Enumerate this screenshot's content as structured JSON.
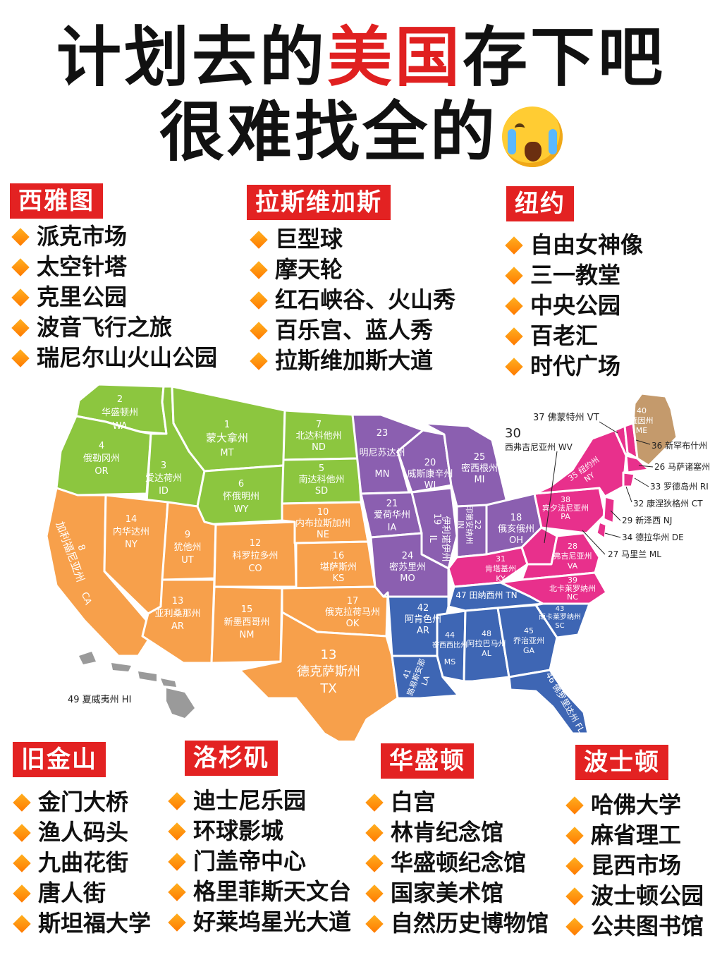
{
  "title": {
    "line1_a": "计划去的",
    "line1_b": "美国",
    "line1_c": "存下吧",
    "line2": "很难找全的"
  },
  "cities": {
    "seattle": {
      "name": "西雅图",
      "items": [
        "派克市场",
        "太空针塔",
        "克里公园",
        "波音飞行之旅",
        "瑞尼尔山火山公园"
      ]
    },
    "lasvegas": {
      "name": "拉斯维加斯",
      "items": [
        "巨型球",
        "摩天轮",
        "红石峡谷、火山秀",
        "百乐宫、蓝人秀",
        "拉斯维加斯大道"
      ]
    },
    "newyork": {
      "name": "纽约",
      "items": [
        "自由女神像",
        "三一教堂",
        "中央公园",
        "百老汇",
        "时代广场"
      ]
    },
    "sanfrancisco": {
      "name": "旧金山",
      "items": [
        "金门大桥",
        "渔人码头",
        "九曲花街",
        "唐人街",
        "斯坦福大学"
      ]
    },
    "losangeles": {
      "name": "洛杉矶",
      "items": [
        "迪士尼乐园",
        "环球影城",
        "门盖帝中心",
        "格里菲斯天文台",
        "好莱坞星光大道"
      ]
    },
    "washington": {
      "name": "华盛顿",
      "items": [
        "白宫",
        "林肯纪念馆",
        "华盛顿纪念馆",
        "国家美术馆",
        "自然历史博物馆"
      ]
    },
    "boston": {
      "name": "波士顿",
      "items": [
        "哈佛大学",
        "麻省理工",
        "昆西市场",
        "波士顿公园",
        "公共图书馆"
      ]
    }
  },
  "colors": {
    "accent": "#e32222",
    "green": "#8cc63f",
    "orange": "#f7a04b",
    "purple": "#8b5fb0",
    "pink": "#e8308c",
    "blue": "#3e66b4",
    "tan": "#c49a6c",
    "gray": "#9a9a9a"
  },
  "map": {
    "states": {
      "wa": {
        "num": "2",
        "name": "华盛顿州",
        "abbr": "WA"
      },
      "or": {
        "num": "4",
        "name": "俄勒冈州",
        "abbr": "OR"
      },
      "id": {
        "num": "3",
        "name": "爱达荷州",
        "abbr": "ID"
      },
      "mt": {
        "num": "1",
        "name": "蒙大拿州",
        "abbr": "MT"
      },
      "wy": {
        "num": "6",
        "name": "怀俄明州",
        "abbr": "WY"
      },
      "nd": {
        "num": "7",
        "name": "北达科他州",
        "abbr": "ND"
      },
      "sd": {
        "num": "5",
        "name": "南达科他州",
        "abbr": "SD"
      },
      "ca": {
        "num": "8",
        "name": "加利福尼亚州",
        "abbr": "CA"
      },
      "nv": {
        "num": "14",
        "name": "内华达州",
        "abbr": "NY"
      },
      "ut": {
        "num": "9",
        "name": "犹他州",
        "abbr": "UT"
      },
      "co": {
        "num": "12",
        "name": "科罗拉多州",
        "abbr": "CO"
      },
      "ne": {
        "num": "10",
        "name": "内布拉斯加州",
        "abbr": "NE"
      },
      "ks": {
        "num": "16",
        "name": "堪萨斯州",
        "abbr": "KS"
      },
      "az": {
        "num": "13",
        "name": "亚利桑那州",
        "abbr": "AR"
      },
      "nm": {
        "num": "15",
        "name": "新墨西哥州",
        "abbr": "NM"
      },
      "ok": {
        "num": "17",
        "name": "俄克拉荷马州",
        "abbr": "OK"
      },
      "tx": {
        "num": "13",
        "name": "德克萨斯州",
        "abbr": "TX"
      },
      "mn": {
        "num": "23",
        "name": "明尼苏达州",
        "abbr": "MN"
      },
      "wi": {
        "num": "20",
        "name": "威斯康辛州",
        "abbr": "WI"
      },
      "mi": {
        "num": "25",
        "name": "密西根州",
        "abbr": "MI"
      },
      "ia": {
        "num": "21",
        "name": "爱荷华州",
        "abbr": "IA"
      },
      "il": {
        "num": "19",
        "name": "伊利诺伊州",
        "abbr": "IL"
      },
      "in": {
        "num": "22",
        "name": "印第安纳州",
        "abbr": "IN"
      },
      "oh": {
        "num": "18",
        "name": "俄亥俄州",
        "abbr": "OH"
      },
      "mo": {
        "num": "24",
        "name": "密苏里州",
        "abbr": "MO"
      },
      "ky": {
        "num": "31",
        "name": "肯塔基州",
        "abbr": "KY"
      },
      "ar": {
        "num": "42",
        "name": "阿肯色州",
        "abbr": "AR"
      },
      "tn": {
        "num": "47",
        "name": "田纳西州",
        "abbr": "TN"
      },
      "la": {
        "num": "41",
        "name": "路易斯安那",
        "abbr": "LA"
      },
      "ms": {
        "num": "44",
        "name": "密西西比州",
        "abbr": "MS"
      },
      "al": {
        "num": "48",
        "name": "阿拉巴马州",
        "abbr": "AL"
      },
      "ga": {
        "num": "45",
        "name": "乔治亚州",
        "abbr": "GA"
      },
      "fl": {
        "num": "46",
        "name": "佛罗里达州",
        "abbr": "FL"
      },
      "sc": {
        "num": "43",
        "name": "南卡莱罗纳州",
        "abbr": "SC"
      },
      "nc": {
        "num": "39",
        "name": "北卡莱罗纳州",
        "abbr": "NC"
      },
      "va": {
        "num": "28",
        "name": "弗吉尼亚州",
        "abbr": "VA"
      },
      "pa": {
        "num": "38",
        "name": "宾夕法尼亚州",
        "abbr": "PA"
      },
      "ny": {
        "num": "35",
        "name": "纽约州",
        "abbr": "NY"
      },
      "me": {
        "num": "40",
        "name": "缅因州",
        "abbr": "ME"
      }
    },
    "callouts": {
      "vt": "37 佛蒙特州 VT",
      "wv_num": "30",
      "wv": "西弗吉尼亚州 WV",
      "nh": "36 新罕布什州",
      "ma": "26 马萨诸塞州",
      "ri": "33 罗德岛州 RI",
      "ct": "32 康涅狄格州 CT",
      "nj": "29 新泽西 NJ",
      "de": "34 德拉华州 DE",
      "md": "27 马里兰 ML",
      "hi": "49 夏威夷州 HI"
    }
  }
}
